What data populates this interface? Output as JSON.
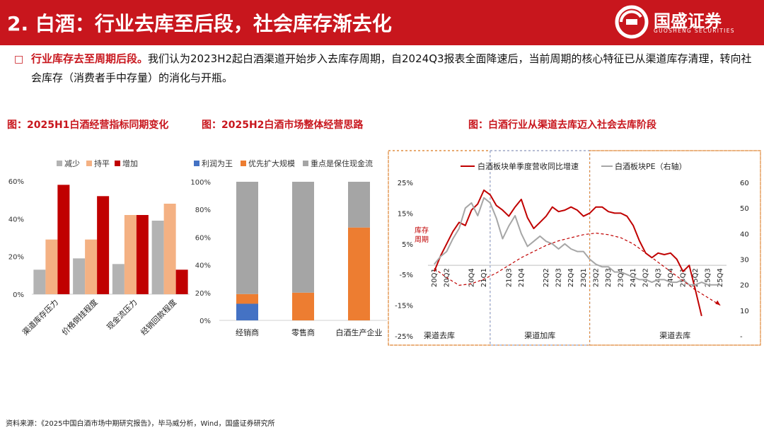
{
  "header": {
    "title": "2. 白酒：行业去库至后段，社会库存渐去化"
  },
  "logo": {
    "name": "国盛证券",
    "sub": "GUOSHENG SECURITIES"
  },
  "intro": {
    "bullet_icon": "square-bullet-icon",
    "highlight": "行业库存去至周期后段。",
    "text": "我们认为2023H2起白酒渠道开始步入去库存周期，自2024Q3报表全面降速后，当前周期的核心特征已从渠道库存清理，转向社会库存（消费者手中存量）的消化与开瓶。"
  },
  "titles": {
    "chart1": "图：2025H1白酒经营指标同期变化",
    "chart2": "图：2025H2白酒市场整体经营思路",
    "chart3": "图：白酒行业从渠道去库迈入社会去库阶段"
  },
  "source": "资料来源：《2025中国白酒市场中期研究报告》，毕马威分析，Wind，国盛证券研究所",
  "chart_data": [
    {
      "type": "bar",
      "categories": [
        "渠道库存压力",
        "价格倒挂程度",
        "现金流压力",
        "经销回款程度"
      ],
      "series": [
        {
          "name": "减少",
          "color": "#b3b3b3",
          "values": [
            13,
            19,
            16,
            39
          ]
        },
        {
          "name": "持平",
          "color": "#f4b183",
          "values": [
            29,
            29,
            42,
            48
          ]
        },
        {
          "name": "增加",
          "color": "#c00000",
          "values": [
            58,
            52,
            42,
            13
          ]
        }
      ],
      "yticks": [
        "0%",
        "20%",
        "40%",
        "60%"
      ],
      "ylim": [
        0,
        60
      ],
      "legend": "top"
    },
    {
      "type": "bar",
      "stacked": true,
      "categories": [
        "经销商",
        "零售商",
        "白酒生产企业"
      ],
      "series": [
        {
          "name": "利润为王",
          "color": "#4472c4",
          "values": [
            12,
            0,
            0
          ]
        },
        {
          "name": "优先扩大规模",
          "color": "#ed7d31",
          "values": [
            7,
            20,
            67
          ]
        },
        {
          "name": "重点是保住现金流",
          "color": "#a5a5a5",
          "values": [
            81,
            80,
            33
          ]
        }
      ],
      "yticks": [
        "0%",
        "20%",
        "40%",
        "60%",
        "80%",
        "100%"
      ],
      "ylim": [
        0,
        100
      ],
      "legend": "top"
    },
    {
      "type": "line",
      "categories": [
        "20Q1",
        "20Q2",
        "20Q3",
        "20Q4",
        "21Q1",
        "21Q2",
        "21Q3",
        "21Q4",
        "22Q1",
        "22Q2",
        "22Q3",
        "22Q4",
        "23Q1",
        "23Q2",
        "23Q3",
        "23Q4",
        "24Q1",
        "24Q2",
        "24Q3",
        "24Q4",
        "25Q1",
        "25Q2",
        "25Q3",
        "25Q4"
      ],
      "x_tick_labels": [
        "20Q1",
        "20Q2",
        "20Q4",
        "21Q1",
        "21Q3",
        "21Q4",
        "22Q2",
        "22Q3",
        "22Q4",
        "23Q1",
        "23Q2",
        "23Q3",
        "23Q4",
        "24Q1",
        "24Q2",
        "24Q3",
        "24Q4",
        "25Q1",
        "25Q2",
        "25Q3",
        "25Q4"
      ],
      "x_tick_positions": [
        0,
        1,
        3,
        4,
        6,
        7,
        9,
        10,
        11,
        12,
        13,
        14,
        15,
        16,
        17,
        18,
        19,
        20,
        21,
        22,
        23
      ],
      "series": [
        {
          "name": "白酒板块单季度营收同比增速",
          "axis": "left",
          "color": "#c00000",
          "x": [
            0,
            0.5,
            1,
            1.5,
            2,
            2.5,
            3,
            3.5,
            4,
            4.5,
            5,
            5.5,
            6,
            6.5,
            7,
            7.5,
            8,
            8.5,
            9,
            9.5,
            10,
            10.5,
            11,
            11.5,
            12,
            12.5,
            13,
            13.5,
            14,
            14.5,
            15,
            15.5,
            16,
            16.5,
            17,
            17.5,
            18,
            18.5,
            19,
            19.5,
            20,
            20.5,
            21,
            21.5
          ],
          "values": [
            -4,
            1,
            5,
            9,
            12,
            11,
            16,
            18,
            22.5,
            21,
            17.5,
            16,
            14,
            17,
            19.5,
            13.5,
            10,
            12,
            14,
            17,
            15.5,
            16,
            17,
            16,
            14,
            15,
            17,
            17,
            15.5,
            15,
            15,
            14,
            11,
            6,
            2,
            0.5,
            2,
            1.5,
            2,
            0,
            -4,
            -2,
            -10,
            -18.5
          ]
        },
        {
          "name": "白酒板块PE（右轴）",
          "axis": "right",
          "color": "#a6a6a6",
          "x": [
            0,
            0.5,
            1,
            1.5,
            2,
            2.5,
            3,
            3.5,
            4,
            4.5,
            5,
            5.5,
            6,
            6.5,
            7,
            7.5,
            8,
            8.5,
            9,
            9.5,
            10,
            10.5,
            11,
            11.5,
            12,
            12.5,
            13,
            13.5,
            14,
            14.5,
            15,
            15.5,
            16,
            16.5,
            17,
            17.5,
            18,
            18.5,
            19,
            19.5,
            20,
            20.5,
            21,
            21.5,
            22,
            22.5,
            23
          ],
          "values": [
            28,
            31,
            33,
            38,
            42,
            50,
            52,
            47,
            54,
            52,
            46,
            38,
            43,
            47,
            40,
            35,
            37,
            39,
            37,
            36,
            34,
            36,
            34,
            33,
            33,
            30,
            28,
            27,
            27,
            25,
            25,
            24,
            23,
            22,
            22,
            21,
            22,
            22,
            21,
            21,
            22,
            20,
            20,
            21,
            20,
            20,
            20
          ]
        },
        {
          "name": "库存周期",
          "axis": "left",
          "color": "#c00000",
          "dashed": true,
          "x": [
            0,
            1,
            2,
            3,
            4,
            5,
            6,
            7,
            8,
            9,
            10,
            11,
            12,
            13,
            14,
            15,
            16,
            17,
            18,
            19,
            20,
            21,
            22,
            23
          ],
          "values": [
            -3,
            -6,
            -8.5,
            -8,
            -6.5,
            -4.5,
            -2,
            0.5,
            2.5,
            4.5,
            6,
            7,
            8,
            8.5,
            8,
            7,
            5,
            2,
            -1,
            -4,
            -7,
            -10,
            -12.5,
            -15
          ]
        }
      ],
      "left_yticks": [
        "-25%",
        "-15%",
        "-5%",
        "5%",
        "15%",
        "25%"
      ],
      "left_ylim": [
        -25,
        25
      ],
      "right_yticks": [
        "-",
        "10",
        "20",
        "30",
        "40",
        "50",
        "60"
      ],
      "right_ylim": [
        0,
        60
      ],
      "annotation": "库存\n周期",
      "phases": [
        {
          "label": "渠道去库",
          "color": "#e08a3c",
          "from": -0.5,
          "to": 4.5
        },
        {
          "label": "渠道加库",
          "color": "#8ea9db",
          "from": 4.5,
          "to": 12.5
        },
        {
          "label": "渠道去库",
          "color": "#e08a3c",
          "from": 12.5,
          "to": 23.5
        }
      ]
    }
  ]
}
